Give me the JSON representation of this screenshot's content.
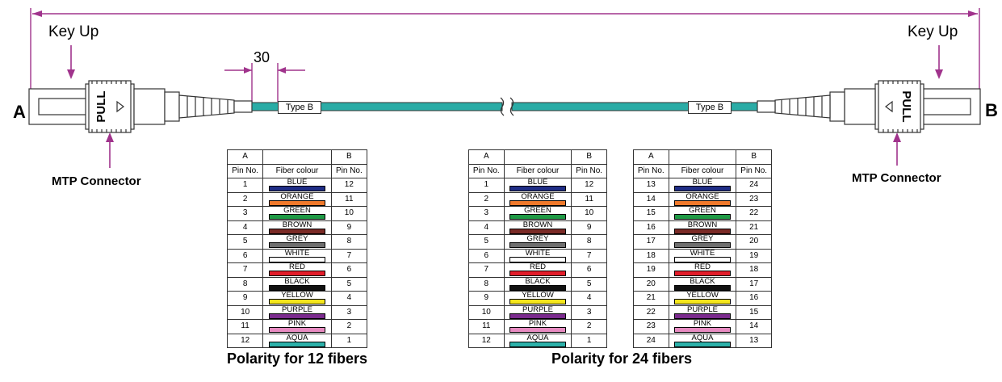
{
  "labels": {
    "key_up_left": "Key Up",
    "key_up_right": "Key Up",
    "end_a": "A",
    "end_b": "B",
    "mtp_left": "MTP Connector",
    "mtp_right": "MTP Connector",
    "pull_left": "PULL",
    "pull_right": "PULL",
    "type_left": "Type B",
    "type_right": "Type B",
    "dimension": "30"
  },
  "colors": {
    "dimension_line": "#a0338c",
    "cable": "#2aaca6",
    "outline": "#333333"
  },
  "headers": {
    "a": "A",
    "b": "B",
    "pin_a": "Pin No.",
    "fiber": "Fiber colour",
    "pin_b": "Pin No."
  },
  "fibers": [
    {
      "name": "BLUE",
      "color": "#1f2d86"
    },
    {
      "name": "ORANGE",
      "color": "#f0792b"
    },
    {
      "name": "GREEN",
      "color": "#1f9a45"
    },
    {
      "name": "BROWN",
      "color": "#7a2a26"
    },
    {
      "name": "GREY",
      "color": "#6f6f6f"
    },
    {
      "name": "WHITE",
      "color": "#ffffff"
    },
    {
      "name": "RED",
      "color": "#e21d2a"
    },
    {
      "name": "BLACK",
      "color": "#111111"
    },
    {
      "name": "YELLOW",
      "color": "#f4e51c"
    },
    {
      "name": "PURPLE",
      "color": "#7b2b8e"
    },
    {
      "name": "PINK",
      "color": "#e78ac0"
    },
    {
      "name": "AQUA",
      "color": "#2cb1aa"
    }
  ],
  "tables": {
    "t12": {
      "a": [
        "1",
        "2",
        "3",
        "4",
        "5",
        "6",
        "7",
        "8",
        "9",
        "10",
        "11",
        "12"
      ],
      "b": [
        "12",
        "11",
        "10",
        "9",
        "8",
        "7",
        "6",
        "5",
        "4",
        "3",
        "2",
        "1"
      ]
    },
    "t24a": {
      "a": [
        "1",
        "2",
        "3",
        "4",
        "5",
        "6",
        "7",
        "8",
        "9",
        "10",
        "11",
        "12"
      ],
      "b": [
        "12",
        "11",
        "10",
        "9",
        "8",
        "7",
        "6",
        "5",
        "4",
        "3",
        "2",
        "1"
      ]
    },
    "t24b": {
      "a": [
        "13",
        "14",
        "15",
        "16",
        "17",
        "18",
        "19",
        "20",
        "21",
        "22",
        "23",
        "24"
      ],
      "b": [
        "24",
        "23",
        "22",
        "21",
        "20",
        "19",
        "18",
        "17",
        "16",
        "15",
        "14",
        "13"
      ]
    }
  },
  "captions": {
    "polarity_12": "Polarity for 12 fibers",
    "polarity_24": "Polarity for 24 fibers"
  }
}
